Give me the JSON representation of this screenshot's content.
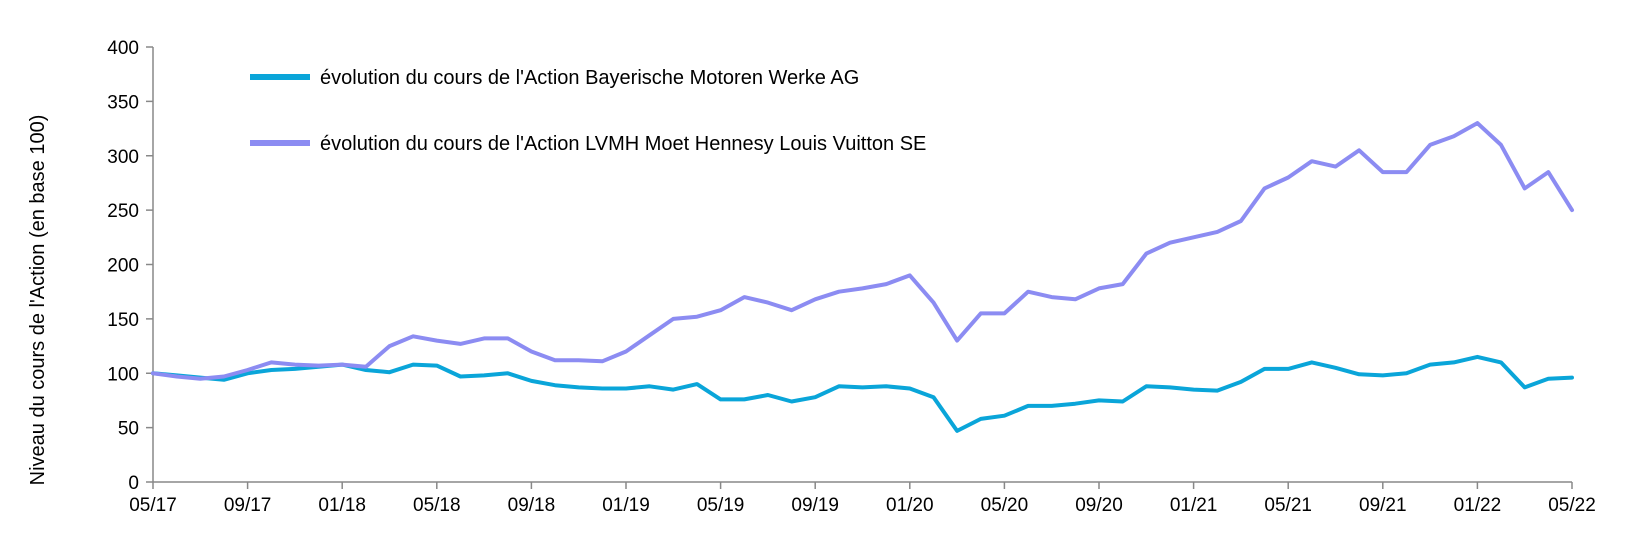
{
  "chart_data": {
    "type": "line",
    "title": "",
    "xlabel": "",
    "ylabel": "Niveau du cours de l'Action (en base 100)",
    "ylim": [
      0,
      400
    ],
    "yticks": [
      0,
      50,
      100,
      150,
      200,
      250,
      300,
      350,
      400
    ],
    "xlim": [
      "2017-05",
      "2022-05"
    ],
    "xticks": [
      "05/17",
      "09/17",
      "01/18",
      "05/18",
      "09/18",
      "01/19",
      "05/19",
      "09/19",
      "01/20",
      "05/20",
      "09/20",
      "01/21",
      "05/21",
      "09/21",
      "01/22",
      "05/22"
    ],
    "grid": false,
    "legend_position": "top-left",
    "series": [
      {
        "name": "évolution du cours de l'Action Bayerische Motoren Werke AG",
        "color": "#0aa5d9",
        "x": [
          "2017-05",
          "2017-06",
          "2017-07",
          "2017-08",
          "2017-09",
          "2017-10",
          "2017-11",
          "2017-12",
          "2018-01",
          "2018-02",
          "2018-03",
          "2018-04",
          "2018-05",
          "2018-06",
          "2018-07",
          "2018-08",
          "2018-09",
          "2018-10",
          "2018-11",
          "2018-12",
          "2019-01",
          "2019-02",
          "2019-03",
          "2019-04",
          "2019-05",
          "2019-06",
          "2019-07",
          "2019-08",
          "2019-09",
          "2019-10",
          "2019-11",
          "2019-12",
          "2020-01",
          "2020-02",
          "2020-03",
          "2020-04",
          "2020-05",
          "2020-06",
          "2020-07",
          "2020-08",
          "2020-09",
          "2020-10",
          "2020-11",
          "2020-12",
          "2021-01",
          "2021-02",
          "2021-03",
          "2021-04",
          "2021-05",
          "2021-06",
          "2021-07",
          "2021-08",
          "2021-09",
          "2021-10",
          "2021-11",
          "2021-12",
          "2022-01",
          "2022-02",
          "2022-03",
          "2022-04",
          "2022-05"
        ],
        "y": [
          100,
          98,
          96,
          94,
          100,
          103,
          104,
          106,
          108,
          103,
          101,
          108,
          107,
          97,
          98,
          100,
          93,
          89,
          87,
          86,
          86,
          88,
          85,
          90,
          76,
          76,
          80,
          74,
          78,
          88,
          87,
          88,
          86,
          78,
          47,
          58,
          61,
          70,
          70,
          72,
          75,
          74,
          88,
          87,
          85,
          84,
          92,
          104,
          104,
          110,
          105,
          99,
          98,
          100,
          108,
          110,
          115,
          110,
          87,
          95,
          96
        ]
      },
      {
        "name": "évolution du cours de l'Action LVMH Moet Hennesy Louis Vuitton SE",
        "color": "#8c8cf2",
        "x": [
          "2017-05",
          "2017-06",
          "2017-07",
          "2017-08",
          "2017-09",
          "2017-10",
          "2017-11",
          "2017-12",
          "2018-01",
          "2018-02",
          "2018-03",
          "2018-04",
          "2018-05",
          "2018-06",
          "2018-07",
          "2018-08",
          "2018-09",
          "2018-10",
          "2018-11",
          "2018-12",
          "2019-01",
          "2019-02",
          "2019-03",
          "2019-04",
          "2019-05",
          "2019-06",
          "2019-07",
          "2019-08",
          "2019-09",
          "2019-10",
          "2019-11",
          "2019-12",
          "2020-01",
          "2020-02",
          "2020-03",
          "2020-04",
          "2020-05",
          "2020-06",
          "2020-07",
          "2020-08",
          "2020-09",
          "2020-10",
          "2020-11",
          "2020-12",
          "2021-01",
          "2021-02",
          "2021-03",
          "2021-04",
          "2021-05",
          "2021-06",
          "2021-07",
          "2021-08",
          "2021-09",
          "2021-10",
          "2021-11",
          "2021-12",
          "2022-01",
          "2022-02",
          "2022-03",
          "2022-04",
          "2022-05"
        ],
        "y": [
          100,
          97,
          95,
          97,
          103,
          110,
          108,
          107,
          108,
          106,
          125,
          134,
          130,
          127,
          132,
          132,
          120,
          112,
          112,
          111,
          120,
          135,
          150,
          152,
          158,
          170,
          165,
          158,
          168,
          175,
          178,
          182,
          190,
          165,
          130,
          155,
          155,
          175,
          170,
          168,
          178,
          182,
          210,
          220,
          225,
          230,
          240,
          270,
          280,
          295,
          290,
          305,
          285,
          285,
          310,
          318,
          330,
          310,
          270,
          285,
          250
        ]
      }
    ]
  }
}
